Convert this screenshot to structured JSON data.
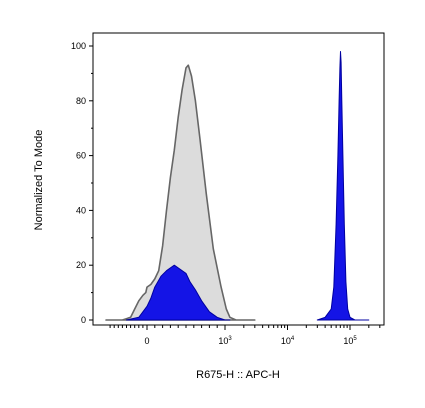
{
  "chart_data": {
    "type": "area",
    "xlabel": "R675-H :: APC-H",
    "ylabel": "Normalized To Mode",
    "x_scale": "biexponential",
    "ylim": [
      0,
      100
    ],
    "y_ticks": [
      {
        "value": 0,
        "label": "0"
      },
      {
        "value": 20,
        "label": "20"
      },
      {
        "value": 40,
        "label": "40"
      },
      {
        "value": 60,
        "label": "60"
      },
      {
        "value": 80,
        "label": "80"
      },
      {
        "value": 100,
        "label": "100"
      }
    ],
    "x_ticks": [
      {
        "value": 0,
        "base": "0",
        "exp": ""
      },
      {
        "value": 1000,
        "base": "10",
        "exp": "3"
      },
      {
        "value": 10000,
        "base": "10",
        "exp": "4"
      },
      {
        "value": 100000,
        "base": "10",
        "exp": "5"
      }
    ],
    "series": [
      {
        "fill": "#dcdcdc",
        "stroke": "#666666",
        "points": [
          [
            -1000,
            0
          ],
          [
            -600,
            0
          ],
          [
            -400,
            1
          ],
          [
            -300,
            4
          ],
          [
            -200,
            7
          ],
          [
            -100,
            9
          ],
          [
            -30,
            10
          ],
          [
            0,
            12
          ],
          [
            50,
            13
          ],
          [
            100,
            15
          ],
          [
            150,
            18
          ],
          [
            200,
            27
          ],
          [
            250,
            40
          ],
          [
            300,
            52
          ],
          [
            350,
            62
          ],
          [
            400,
            74
          ],
          [
            450,
            84
          ],
          [
            500,
            92
          ],
          [
            530,
            93
          ],
          [
            570,
            89
          ],
          [
            620,
            80
          ],
          [
            680,
            66
          ],
          [
            760,
            46
          ],
          [
            850,
            26
          ],
          [
            950,
            12
          ],
          [
            1050,
            4
          ],
          [
            1200,
            1
          ],
          [
            1500,
            0
          ],
          [
            3000,
            0
          ]
        ]
      },
      {
        "fill": "#1414e6",
        "stroke": "#0000a0",
        "points": [
          [
            -500,
            0
          ],
          [
            -200,
            1
          ],
          [
            -100,
            3
          ],
          [
            0,
            5
          ],
          [
            50,
            8
          ],
          [
            100,
            12
          ],
          [
            180,
            16
          ],
          [
            250,
            18
          ],
          [
            300,
            19
          ],
          [
            350,
            20
          ],
          [
            400,
            19
          ],
          [
            450,
            18
          ],
          [
            500,
            17
          ],
          [
            550,
            14
          ],
          [
            620,
            11
          ],
          [
            700,
            7
          ],
          [
            800,
            3
          ],
          [
            900,
            1
          ],
          [
            1000,
            0
          ],
          [
            1200,
            0
          ]
        ]
      },
      {
        "fill": "#1414e6",
        "stroke": "#0000a0",
        "points": [
          [
            30000,
            0
          ],
          [
            40000,
            1
          ],
          [
            50000,
            4
          ],
          [
            55000,
            12
          ],
          [
            60000,
            35
          ],
          [
            64000,
            60
          ],
          [
            67000,
            80
          ],
          [
            69000,
            92
          ],
          [
            70500,
            98
          ],
          [
            72000,
            94
          ],
          [
            74000,
            80
          ],
          [
            77000,
            60
          ],
          [
            81000,
            35
          ],
          [
            86000,
            14
          ],
          [
            92000,
            4
          ],
          [
            100000,
            1
          ],
          [
            120000,
            0
          ],
          [
            200000,
            0
          ]
        ]
      }
    ]
  }
}
